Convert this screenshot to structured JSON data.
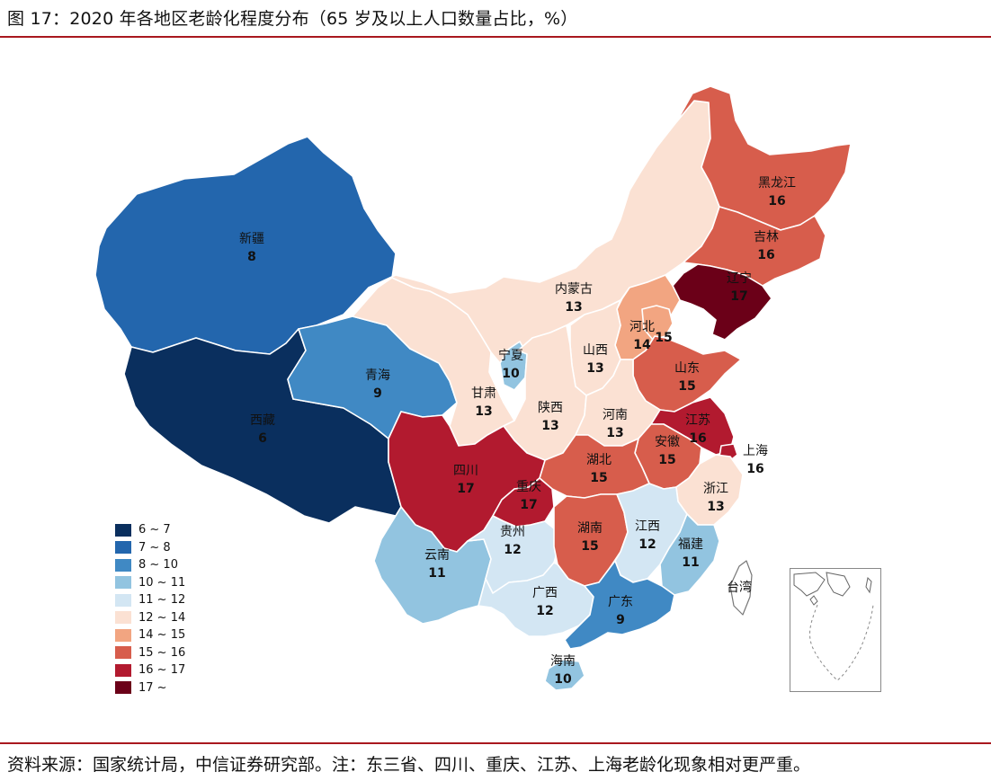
{
  "title": "图 17：2020 年各地区老龄化程度分布（65 岁及以上人口数量占比，%）",
  "source": "资料来源：国家统计局，中信证券研究部。注：东三省、四川、重庆、江苏、上海老龄化现象相对更严重。",
  "legend": [
    {
      "label": "6 ~ 7",
      "color": "#0a2f5e"
    },
    {
      "label": "7 ~ 8",
      "color": "#2366ad"
    },
    {
      "label": "8 ~ 10",
      "color": "#4089c4"
    },
    {
      "label": "10 ~ 11",
      "color": "#92c4e0"
    },
    {
      "label": "11 ~ 12",
      "color": "#d3e6f3"
    },
    {
      "label": "12 ~ 14",
      "color": "#fbe1d3"
    },
    {
      "label": "14 ~ 15",
      "color": "#f2a581"
    },
    {
      "label": "15 ~ 16",
      "color": "#d75d4c"
    },
    {
      "label": "16 ~ 17",
      "color": "#b21a2f"
    },
    {
      "label": "17 ~",
      "color": "#6b0018"
    }
  ],
  "provinces": [
    {
      "name": "新疆",
      "value": "8"
    },
    {
      "name": "西藏",
      "value": "6"
    },
    {
      "name": "青海",
      "value": "9"
    },
    {
      "name": "甘肃",
      "value": "13"
    },
    {
      "name": "内蒙古",
      "value": "13"
    },
    {
      "name": "宁夏",
      "value": "10"
    },
    {
      "name": "陕西",
      "value": "13"
    },
    {
      "name": "山西",
      "value": "13"
    },
    {
      "name": "河北",
      "value": "14"
    },
    {
      "name": "京津",
      "value": "15"
    },
    {
      "name": "黑龙江",
      "value": "16"
    },
    {
      "name": "吉林",
      "value": "16"
    },
    {
      "name": "辽宁",
      "value": "17"
    },
    {
      "name": "山东",
      "value": "15"
    },
    {
      "name": "河南",
      "value": "13"
    },
    {
      "name": "江苏",
      "value": "16"
    },
    {
      "name": "安徽",
      "value": "15"
    },
    {
      "name": "上海",
      "value": "16"
    },
    {
      "name": "湖北",
      "value": "15"
    },
    {
      "name": "四川",
      "value": "17"
    },
    {
      "name": "重庆",
      "value": "17"
    },
    {
      "name": "浙江",
      "value": "13"
    },
    {
      "name": "贵州",
      "value": "12"
    },
    {
      "name": "湖南",
      "value": "15"
    },
    {
      "name": "江西",
      "value": "12"
    },
    {
      "name": "福建",
      "value": "11"
    },
    {
      "name": "云南",
      "value": "11"
    },
    {
      "name": "广西",
      "value": "12"
    },
    {
      "name": "广东",
      "value": "9"
    },
    {
      "name": "海南",
      "value": "10"
    },
    {
      "name": "台湾",
      "value": ""
    }
  ]
}
